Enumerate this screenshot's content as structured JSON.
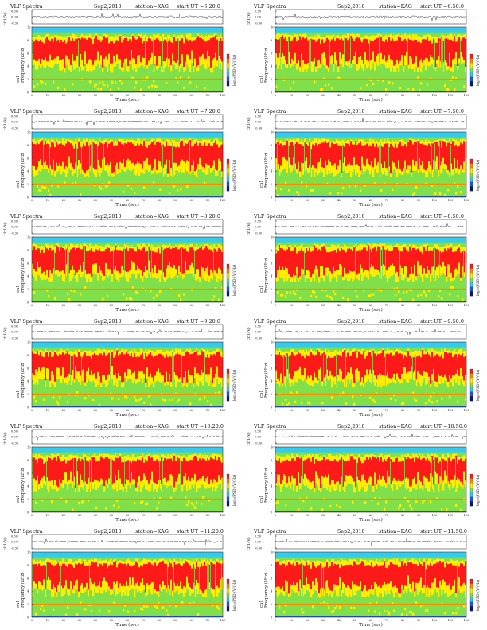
{
  "chart_data": [
    {
      "type": "heatmap",
      "title": "VLF Spectra",
      "date": "Sep2,2010",
      "station": "station=KAG",
      "start": "start UT =6:20:0",
      "top_panel": {
        "ylabel": "ch1(V)",
        "ylim": [
          -0.3,
          0.3
        ],
        "yticks": [
          "0.30",
          "0.00",
          "-0.30"
        ]
      },
      "spectrogram": {
        "ylabel": "ch1\nFrequency (kHz)",
        "ylim": [
          0,
          10
        ],
        "yticks": [
          "10",
          "8",
          "6",
          "4",
          "2",
          "0"
        ],
        "xlabel": "Time (sec)",
        "xlim": [
          0,
          120
        ],
        "xticks": [
          "0",
          "10",
          "20",
          "30",
          "40",
          "50",
          "60",
          "70",
          "80",
          "90",
          "100",
          "110",
          "120"
        ]
      },
      "colorbar": {
        "label": "log₁₀(PSD)(V²/Hz)"
      }
    },
    {
      "type": "heatmap",
      "title": "VLF Spectra",
      "date": "Sep2,2010",
      "station": "station=KAG",
      "start": "start UT =6:50:0",
      "top_panel": {
        "ylabel": "ch1(V)",
        "ylim": [
          -0.3,
          0.3
        ],
        "yticks": [
          "0.30",
          "0.00",
          "-0.30"
        ]
      },
      "spectrogram": {
        "ylabel": "ch1\nFrequency (kHz)",
        "ylim": [
          0,
          10
        ],
        "yticks": [
          "10",
          "8",
          "6",
          "4",
          "2",
          "0"
        ],
        "xlabel": "Time (sec)",
        "xlim": [
          0,
          120
        ],
        "xticks": [
          "0",
          "10",
          "20",
          "30",
          "40",
          "50",
          "60",
          "70",
          "80",
          "90",
          "100",
          "110",
          "120"
        ]
      },
      "colorbar": {
        "label": "log₁₀(PSD)(V²/Hz)"
      }
    },
    {
      "type": "heatmap",
      "title": "VLF Spectra",
      "date": "Sep2,2010",
      "station": "station=KAG",
      "start": "start UT =7:20:0",
      "top_panel": {
        "ylabel": "ch1(V)",
        "ylim": [
          -0.3,
          0.3
        ],
        "yticks": [
          "0.30",
          "0.00",
          "-0.30"
        ]
      },
      "spectrogram": {
        "ylabel": "ch1\nFrequency (kHz)",
        "ylim": [
          0,
          10
        ],
        "yticks": [
          "10",
          "8",
          "6",
          "4",
          "2",
          "0"
        ],
        "xlabel": "Time (sec)",
        "xlim": [
          0,
          120
        ],
        "xticks": [
          "0",
          "10",
          "20",
          "30",
          "40",
          "50",
          "60",
          "70",
          "80",
          "90",
          "100",
          "110",
          "120"
        ]
      },
      "colorbar": {
        "label": "log₁₀(PSD)(V²/Hz)"
      }
    },
    {
      "type": "heatmap",
      "title": "VLF Spectra",
      "date": "Sep2,2010",
      "station": "station=KAG",
      "start": "start UT =7:50:0",
      "top_panel": {
        "ylabel": "ch1(V)",
        "ylim": [
          -0.3,
          0.3
        ],
        "yticks": [
          "0.30",
          "0.00",
          "-0.30"
        ]
      },
      "spectrogram": {
        "ylabel": "ch1\nFrequency (kHz)",
        "ylim": [
          0,
          10
        ],
        "yticks": [
          "10",
          "8",
          "6",
          "4",
          "2",
          "0"
        ],
        "xlabel": "Time (sec)",
        "xlim": [
          0,
          120
        ],
        "xticks": [
          "0",
          "10",
          "20",
          "30",
          "40",
          "50",
          "60",
          "70",
          "80",
          "90",
          "100",
          "110",
          "120"
        ]
      },
      "colorbar": {
        "label": "log₁₀(PSD)(V²/Hz)"
      }
    },
    {
      "type": "heatmap",
      "title": "VLF Spectra",
      "date": "Sep2,2010",
      "station": "station=KAG",
      "start": "start UT =8:20:0",
      "top_panel": {
        "ylabel": "ch1(V)",
        "ylim": [
          -0.3,
          0.3
        ],
        "yticks": [
          "0.30",
          "0.00",
          "-0.30"
        ]
      },
      "spectrogram": {
        "ylabel": "ch1\nFrequency (kHz)",
        "ylim": [
          0,
          10
        ],
        "yticks": [
          "10",
          "8",
          "6",
          "4",
          "2",
          "0"
        ],
        "xlabel": "Time (sec)",
        "xlim": [
          0,
          120
        ],
        "xticks": [
          "0",
          "10",
          "20",
          "30",
          "40",
          "50",
          "60",
          "70",
          "80",
          "90",
          "100",
          "110",
          "120"
        ]
      },
      "colorbar": {
        "label": "log₁₀(PSD)(V²/Hz)"
      }
    },
    {
      "type": "heatmap",
      "title": "VLF Spectra",
      "date": "Sep2,2010",
      "station": "station=KAG",
      "start": "start UT =8:50:0",
      "top_panel": {
        "ylabel": "ch1(V)",
        "ylim": [
          -0.3,
          0.3
        ],
        "yticks": [
          "0.30",
          "0.00",
          "-0.30"
        ]
      },
      "spectrogram": {
        "ylabel": "ch1\nFrequency (kHz)",
        "ylim": [
          0,
          10
        ],
        "yticks": [
          "10",
          "8",
          "6",
          "4",
          "2",
          "0"
        ],
        "xlabel": "Time (sec)",
        "xlim": [
          0,
          120
        ],
        "xticks": [
          "0",
          "10",
          "20",
          "30",
          "40",
          "50",
          "60",
          "70",
          "80",
          "90",
          "100",
          "110",
          "120"
        ]
      },
      "colorbar": {
        "label": "log₁₀(PSD)(V²/Hz)"
      }
    },
    {
      "type": "heatmap",
      "title": "VLF Spectra",
      "date": "Sep2,2010",
      "station": "station=KAG",
      "start": "start UT =9:20:0",
      "top_panel": {
        "ylabel": "ch1(V)",
        "ylim": [
          -0.3,
          0.3
        ],
        "yticks": [
          "0.30",
          "0.00",
          "-0.30"
        ]
      },
      "spectrogram": {
        "ylabel": "ch1\nFrequency (kHz)",
        "ylim": [
          0,
          10
        ],
        "yticks": [
          "10",
          "8",
          "6",
          "4",
          "2",
          "0"
        ],
        "xlabel": "Time (sec)",
        "xlim": [
          0,
          120
        ],
        "xticks": [
          "0",
          "10",
          "20",
          "30",
          "40",
          "50",
          "60",
          "70",
          "80",
          "90",
          "100",
          "110",
          "120"
        ]
      },
      "colorbar": {
        "label": "log₁₀(PSD)(V²/Hz)"
      }
    },
    {
      "type": "heatmap",
      "title": "VLF Spectra",
      "date": "Sep2,2010",
      "station": "station=KAG",
      "start": "start UT =9:50:0",
      "top_panel": {
        "ylabel": "ch1(V)",
        "ylim": [
          -0.3,
          0.3
        ],
        "yticks": [
          "0.30",
          "0.00",
          "-0.30"
        ]
      },
      "spectrogram": {
        "ylabel": "ch1\nFrequency (kHz)",
        "ylim": [
          0,
          10
        ],
        "yticks": [
          "10",
          "8",
          "6",
          "4",
          "2",
          "0"
        ],
        "xlabel": "Time (sec)",
        "xlim": [
          0,
          120
        ],
        "xticks": [
          "0",
          "10",
          "20",
          "30",
          "40",
          "50",
          "60",
          "70",
          "80",
          "90",
          "100",
          "110",
          "120"
        ]
      },
      "colorbar": {
        "label": "log₁₀(PSD)(V²/Hz)"
      }
    },
    {
      "type": "heatmap",
      "title": "VLF Spectra",
      "date": "Sep2,2010",
      "station": "station=KAG",
      "start": "start UT =10:20:0",
      "top_panel": {
        "ylabel": "ch1(V)",
        "ylim": [
          -0.3,
          0.3
        ],
        "yticks": [
          "0.30",
          "0.00",
          "-0.30"
        ]
      },
      "spectrogram": {
        "ylabel": "ch1\nFrequency (kHz)",
        "ylim": [
          0,
          10
        ],
        "yticks": [
          "10",
          "8",
          "6",
          "4",
          "2",
          "0"
        ],
        "xlabel": "Time (sec)",
        "xlim": [
          0,
          120
        ],
        "xticks": [
          "0",
          "10",
          "20",
          "30",
          "40",
          "50",
          "60",
          "70",
          "80",
          "90",
          "100",
          "110",
          "120"
        ]
      },
      "colorbar": {
        "label": "log₁₀(PSD)(V²/Hz)"
      }
    },
    {
      "type": "heatmap",
      "title": "VLF Spectra",
      "date": "Sep2,2010",
      "station": "station=KAG",
      "start": "start UT =10:50:0",
      "top_panel": {
        "ylabel": "ch1(V)",
        "ylim": [
          -0.3,
          0.3
        ],
        "yticks": [
          "0.30",
          "0.00",
          "-0.30"
        ]
      },
      "spectrogram": {
        "ylabel": "ch1\nFrequency (kHz)",
        "ylim": [
          0,
          10
        ],
        "yticks": [
          "10",
          "8",
          "6",
          "4",
          "2",
          "0"
        ],
        "xlabel": "Time (sec)",
        "xlim": [
          0,
          120
        ],
        "xticks": [
          "0",
          "10",
          "20",
          "30",
          "40",
          "50",
          "60",
          "70",
          "80",
          "90",
          "100",
          "110",
          "120"
        ]
      },
      "colorbar": {
        "label": "log₁₀(PSD)(V²/Hz)"
      }
    },
    {
      "type": "heatmap",
      "title": "VLF Spectra",
      "date": "Sep2,2010",
      "station": "station=KAG",
      "start": "start UT =11:20:0",
      "top_panel": {
        "ylabel": "ch1(V)",
        "ylim": [
          -0.3,
          0.3
        ],
        "yticks": [
          "0.30",
          "0.00",
          "-0.30"
        ]
      },
      "spectrogram": {
        "ylabel": "ch1\nFrequency (kHz)",
        "ylim": [
          0,
          10
        ],
        "yticks": [
          "10",
          "8",
          "6",
          "4",
          "2",
          "0"
        ],
        "xlabel": "Time (sec)",
        "xlim": [
          0,
          120
        ],
        "xticks": [
          "0",
          "10",
          "20",
          "30",
          "40",
          "50",
          "60",
          "70",
          "80",
          "90",
          "100",
          "110",
          "120"
        ]
      },
      "colorbar": {
        "label": "log₁₀(PSD)(V²/Hz)"
      }
    },
    {
      "type": "heatmap",
      "title": "VLF Spectra",
      "date": "Sep2,2010",
      "station": "station=KAG",
      "start": "start UT =11:50:0",
      "top_panel": {
        "ylabel": "ch1(V)",
        "ylim": [
          -0.3,
          0.3
        ],
        "yticks": [
          "0.30",
          "0.00",
          "-0.30"
        ]
      },
      "spectrogram": {
        "ylabel": "ch1\nFrequency (kHz)",
        "ylim": [
          0,
          10
        ],
        "yticks": [
          "10",
          "8",
          "6",
          "4",
          "2",
          "0"
        ],
        "xlabel": "Time (sec)",
        "xlim": [
          0,
          120
        ],
        "xticks": [
          "0",
          "10",
          "20",
          "30",
          "40",
          "50",
          "60",
          "70",
          "80",
          "90",
          "100",
          "110",
          "120"
        ]
      },
      "colorbar": {
        "label": "log₁₀(PSD)(V²/Hz)"
      }
    }
  ],
  "colors": {
    "red": "#ff1a1a",
    "orange": "#ff8c00",
    "yellow": "#ffee00",
    "green": "#7fe04a",
    "lightgreen": "#bff07a",
    "cyan": "#33ccee",
    "blue": "#2255dd",
    "navy": "#001a66",
    "line": "#333333"
  }
}
